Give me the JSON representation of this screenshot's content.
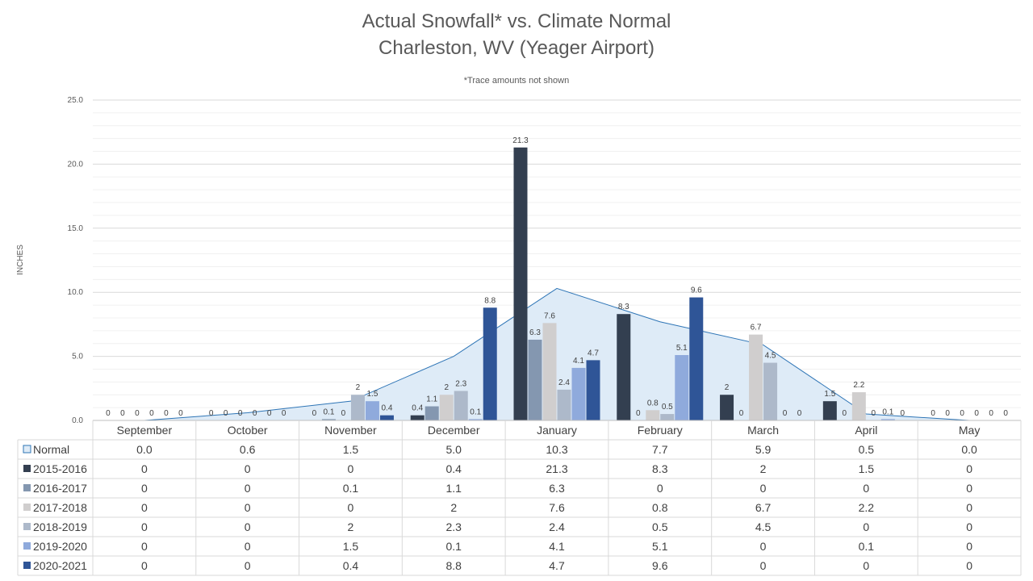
{
  "chart_data": {
    "type": "bar",
    "title": [
      "Actual Snowfall* vs. Climate Normal",
      "Charleston, WV (Yeager Airport)"
    ],
    "subtitle": "*Trace amounts not shown",
    "ylabel": "INCHES",
    "ylim": [
      0,
      25
    ],
    "yticks": [
      "0.0",
      "5.0",
      "10.0",
      "15.0",
      "20.0",
      "25.0"
    ],
    "categories": [
      "September",
      "October",
      "November",
      "December",
      "January",
      "February",
      "March",
      "April",
      "May"
    ],
    "normal": {
      "name": "Normal",
      "type": "area",
      "color": "#DEEBF7",
      "line_color": "#2E75B6",
      "values": [
        0.0,
        0.6,
        1.5,
        5.0,
        10.3,
        7.7,
        5.9,
        0.5,
        0.0
      ],
      "table_values": [
        "0.0",
        "0.6",
        "1.5",
        "5.0",
        "10.3",
        "7.7",
        "5.9",
        "0.5",
        "0.0"
      ]
    },
    "series": [
      {
        "name": "2015-2016",
        "color": "#333F50",
        "values": [
          0,
          0,
          0,
          0.4,
          21.3,
          8.3,
          2,
          1.5,
          0
        ]
      },
      {
        "name": "2016-2017",
        "color": "#8497B0",
        "values": [
          0,
          0,
          0.1,
          1.1,
          6.3,
          0,
          0,
          0,
          0
        ]
      },
      {
        "name": "2017-2018",
        "color": "#D0CECE",
        "values": [
          0,
          0,
          0,
          2,
          7.6,
          0.8,
          6.7,
          2.2,
          0
        ]
      },
      {
        "name": "2018-2019",
        "color": "#ADB9CA",
        "values": [
          0,
          0,
          2,
          2.3,
          2.4,
          0.5,
          4.5,
          0,
          0
        ]
      },
      {
        "name": "2019-2020",
        "color": "#8FAADC",
        "values": [
          0,
          0,
          1.5,
          0.1,
          4.1,
          5.1,
          0,
          0.1,
          0
        ]
      },
      {
        "name": "2020-2021",
        "color": "#2F5597",
        "values": [
          0,
          0,
          0.4,
          8.8,
          4.7,
          9.6,
          0,
          0,
          0
        ]
      }
    ],
    "grid": true,
    "legend": "data-table"
  }
}
